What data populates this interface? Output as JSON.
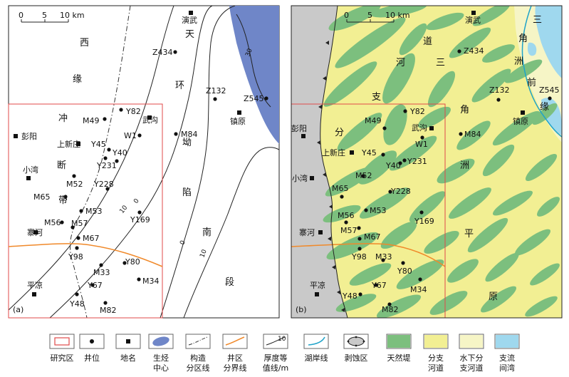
{
  "panels": [
    {
      "id": "a",
      "tag": "(a)",
      "scale": {
        "ticks": [
          "0",
          "5",
          "10 km"
        ]
      },
      "regions": [
        "西",
        "缘",
        "冲",
        "断",
        "带",
        "天",
        "环",
        "坳",
        "陷",
        "南",
        "段"
      ],
      "contours": [
        "30",
        "10",
        "0",
        "10",
        "0"
      ],
      "places": [
        "演武",
        "镇原",
        "彭阳",
        "武沟",
        "上新庄",
        "小湾",
        "寨河",
        "平凉"
      ],
      "wells": [
        "Z434",
        "Z132",
        "Z545",
        "Y82",
        "M49",
        "W1",
        "M84",
        "Y45",
        "Y40",
        "Y231",
        "M52",
        "Y228",
        "M65",
        "M53",
        "Y169",
        "M56",
        "M57",
        "M67",
        "Y98",
        "Y80",
        "M33",
        "M34",
        "Y67",
        "Y48",
        "M82"
      ]
    },
    {
      "id": "b",
      "tag": "(b)",
      "scale": {
        "ticks": [
          "0",
          "5",
          "10 km"
        ]
      },
      "regions": [
        "道",
        "河",
        "三",
        "支",
        "分",
        "角",
        "洲",
        "平",
        "原",
        "三",
        "角",
        "洲",
        "前",
        "缘"
      ],
      "places": [
        "演武",
        "彭阳",
        "武沟",
        "镇原",
        "上新庄",
        "小湾",
        "寨河",
        "平凉"
      ],
      "wells": [
        "Z434",
        "Z132",
        "Z545",
        "Y82",
        "M49",
        "W1",
        "M84",
        "Y45",
        "Y40",
        "Y231",
        "M52",
        "Y228",
        "M65",
        "M53",
        "Y169",
        "M56",
        "M57",
        "M67",
        "Y98",
        "M33",
        "Y80",
        "M34",
        "Y67",
        "Y48",
        "M82"
      ]
    }
  ],
  "legend": [
    {
      "icon": "study-area",
      "label1": "研究区",
      "label2": ""
    },
    {
      "icon": "well",
      "label1": "井位",
      "label2": ""
    },
    {
      "icon": "place",
      "label1": "地名",
      "label2": ""
    },
    {
      "icon": "hydrocarbon",
      "label1": "生烃",
      "label2": "中心"
    },
    {
      "icon": "structure-boundary",
      "label1": "构造",
      "label2": "分区线"
    },
    {
      "icon": "well-area-boundary",
      "label1": "井区",
      "label2": "分界线"
    },
    {
      "icon": "thickness-contour",
      "label1": "厚度等",
      "label2": "值线/m"
    },
    {
      "icon": "lake-shoreline",
      "label1": "湖岸线",
      "label2": ""
    },
    {
      "icon": "erosion-area",
      "label1": "剥蚀区",
      "label2": ""
    },
    {
      "icon": "natural-levee",
      "label1": "天然堤",
      "label2": ""
    },
    {
      "icon": "distributary-channel",
      "label1": "分支",
      "label2": "河道"
    },
    {
      "icon": "subaqueous-channel",
      "label1": "水下分",
      "label2": "支河道"
    },
    {
      "icon": "interdistributary-bay",
      "label1": "支流",
      "label2": "间湾"
    }
  ],
  "legend_contour_value": "10",
  "colors": {
    "hydrocarbon": "#6f86c8",
    "erosion": "#c9c9c9",
    "levee": "#7cbf7e",
    "delta_plain": "#f2ef93",
    "delta_front": "#f6f5c6",
    "bay": "#9fd8ee",
    "study_area": "#e04a4a",
    "well_boundary": "#f0892a",
    "shoreline": "#1fa3c9"
  }
}
